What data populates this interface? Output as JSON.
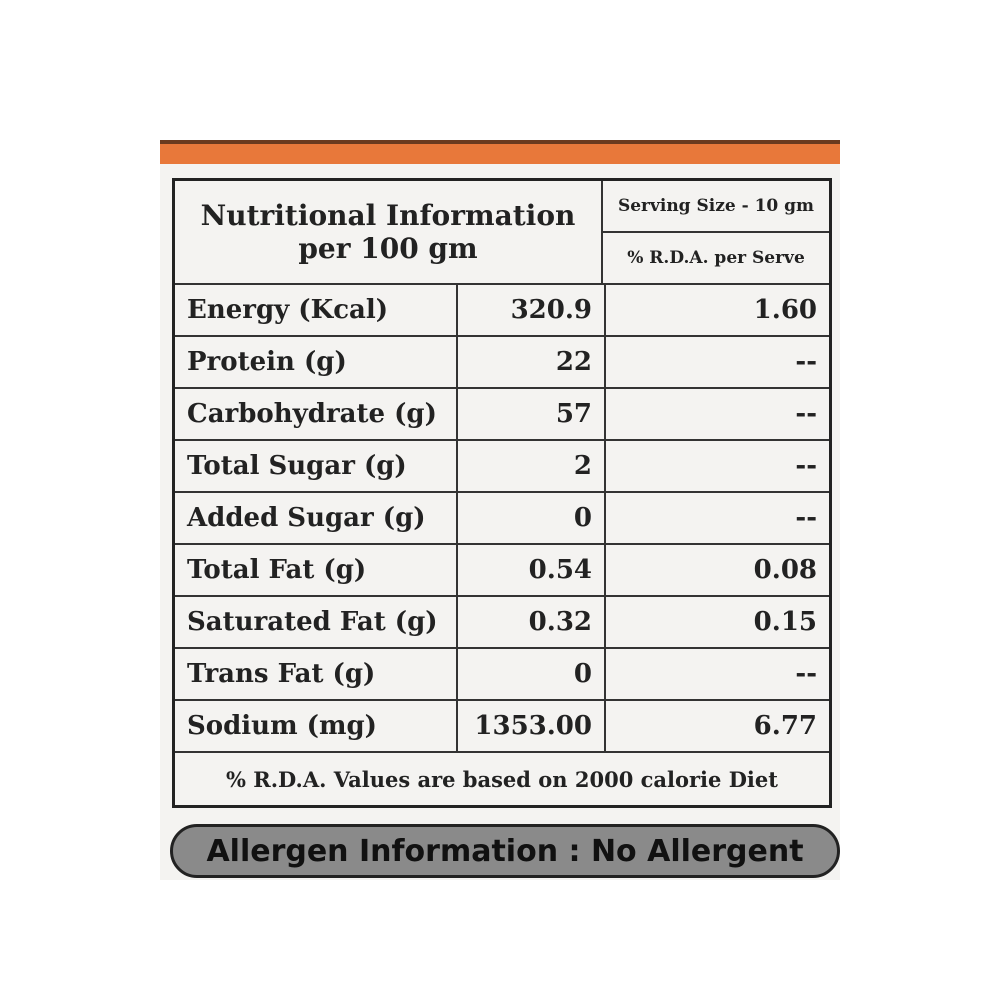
{
  "header": {
    "title": "Nutritional Information",
    "subtitle": "per 100 gm",
    "serving_size": "Serving Size - 10 gm",
    "rda_header": "% R.D.A. per Serve"
  },
  "table": {
    "rows": [
      [
        "Energy (Kcal)",
        "320.9",
        "1.60"
      ],
      [
        "Protein (g)",
        "22",
        "--"
      ],
      [
        "Carbohydrate (g)",
        "57",
        "--"
      ],
      [
        "Total Sugar (g)",
        "2",
        "--"
      ],
      [
        "Added Sugar (g)",
        "0",
        "--"
      ],
      [
        "Total Fat (g)",
        "0.54",
        "0.08"
      ],
      [
        "Saturated Fat (g)",
        "0.32",
        "0.15"
      ],
      [
        "Trans Fat (g)",
        "0",
        "--"
      ],
      [
        "Sodium (mg)",
        "1353.00",
        "6.77"
      ]
    ]
  },
  "footer": {
    "note": "% R.D.A. Values are based on 2000 calorie Diet"
  },
  "allergen": {
    "text": "Allergen Information : No Allergent"
  }
}
